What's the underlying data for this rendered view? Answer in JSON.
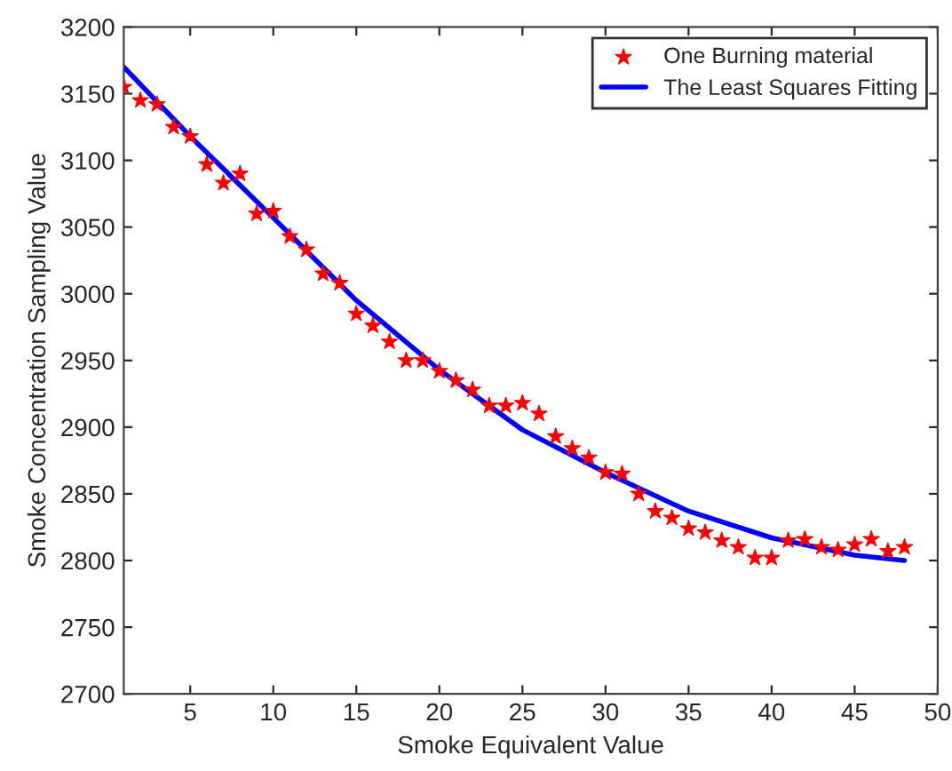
{
  "chart_data": {
    "type": "scatter",
    "xlabel": "Smoke Equivalent Value",
    "ylabel": "Smoke Concentration Sampling Value",
    "xlim": [
      1,
      50
    ],
    "xticks": [
      5,
      10,
      15,
      20,
      25,
      30,
      35,
      40,
      45,
      50
    ],
    "ylim": [
      2700,
      3200
    ],
    "yticks": [
      2700,
      2750,
      2800,
      2850,
      2900,
      2950,
      3000,
      3050,
      3100,
      3150,
      3200
    ],
    "legend": "top right",
    "grid": false,
    "series": [
      {
        "name": "One Burning material",
        "marker": "star",
        "color": "#ff0000",
        "x": [
          1,
          2,
          3,
          4,
          5,
          6,
          7,
          8,
          9,
          10,
          11,
          12,
          13,
          14,
          15,
          16,
          17,
          18,
          19,
          20,
          21,
          22,
          23,
          24,
          25,
          26,
          27,
          28,
          29,
          30,
          31,
          32,
          33,
          34,
          35,
          36,
          37,
          38,
          39,
          40,
          41,
          42,
          43,
          44,
          45,
          46,
          47,
          48
        ],
        "values": [
          3155,
          3145,
          3142,
          3125,
          3118,
          3097,
          3083,
          3090,
          3060,
          3062,
          3043,
          3033,
          3015,
          3008,
          2985,
          2976,
          2964,
          2950,
          2950,
          2942,
          2935,
          2928,
          2916,
          2916,
          2918,
          2910,
          2893,
          2884,
          2877,
          2866,
          2865,
          2850,
          2837,
          2832,
          2824,
          2821,
          2815,
          2810,
          2802,
          2802,
          2815,
          2816,
          2810,
          2808,
          2812,
          2816,
          2807,
          2810
        ]
      },
      {
        "name": "The Least Squares Fitting",
        "type": "line",
        "marker": "none",
        "line_style": "solid",
        "color": "#0000ff",
        "x": [
          1,
          5,
          10,
          15,
          20,
          25,
          30,
          35,
          40,
          45,
          48
        ],
        "values": [
          3170,
          3118,
          3057,
          2995,
          2943,
          2898,
          2866,
          2837,
          2817,
          2804,
          2800
        ]
      }
    ]
  }
}
